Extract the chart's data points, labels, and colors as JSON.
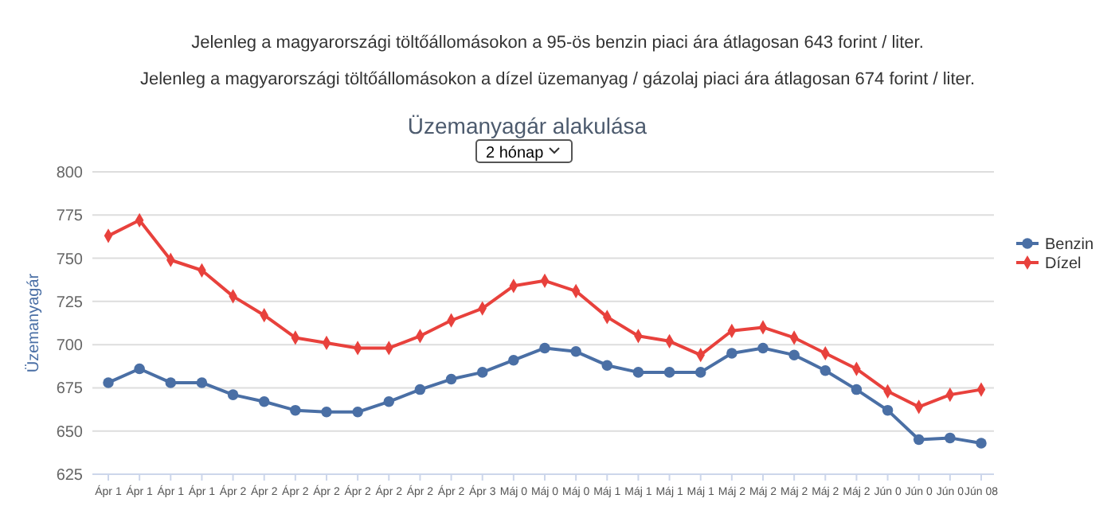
{
  "chart_data": {
    "type": "line",
    "title": "Üzemanyagár alakulása",
    "ylabel": "Üzemanyagár",
    "annotations": [
      "Jelenleg a magyarországi töltőállomásokon a 95-ös benzin piaci ára átlagosan 643 forint / liter.",
      "Jelenleg a magyarországi töltőállomásokon a dízel üzemanyag / gázolaj piaci ára átlagosan 674 forint / liter.",
      "2 hónap"
    ],
    "categories": [
      "Ápr 1",
      "Ápr 1",
      "Ápr 1",
      "Ápr 1",
      "Ápr 2",
      "Ápr 2",
      "Ápr 2",
      "Ápr 2",
      "Ápr 2",
      "Ápr 2",
      "Ápr 2",
      "Ápr 2",
      "Ápr 3",
      "Máj 0",
      "Máj 0",
      "Máj 0",
      "Máj 1",
      "Máj 1",
      "Máj 1",
      "Máj 1",
      "Máj 2",
      "Máj 2",
      "Máj 2",
      "Máj 2",
      "Máj 2",
      "Jún 0",
      "Jún 0",
      "Jún 0",
      "Jún 08"
    ],
    "series": [
      {
        "name": "Benzin",
        "color": "#4a6fa5",
        "marker": "circle",
        "values": [
          678,
          686,
          678,
          678,
          671,
          667,
          662,
          661,
          661,
          667,
          674,
          680,
          684,
          691,
          698,
          696,
          688,
          684,
          684,
          684,
          695,
          698,
          694,
          685,
          674,
          662,
          645,
          646,
          643
        ]
      },
      {
        "name": "Dízel",
        "color": "#e8413c",
        "marker": "diamond",
        "values": [
          763,
          772,
          749,
          743,
          728,
          717,
          704,
          701,
          698,
          698,
          705,
          714,
          721,
          734,
          737,
          731,
          716,
          705,
          702,
          694,
          708,
          710,
          704,
          695,
          686,
          673,
          664,
          671,
          674
        ]
      }
    ],
    "ylim": [
      625,
      800
    ],
    "yticks": [
      625,
      650,
      675,
      700,
      725,
      750,
      775,
      800
    ],
    "grid": "y",
    "legend": "right",
    "line_style": "solid"
  }
}
